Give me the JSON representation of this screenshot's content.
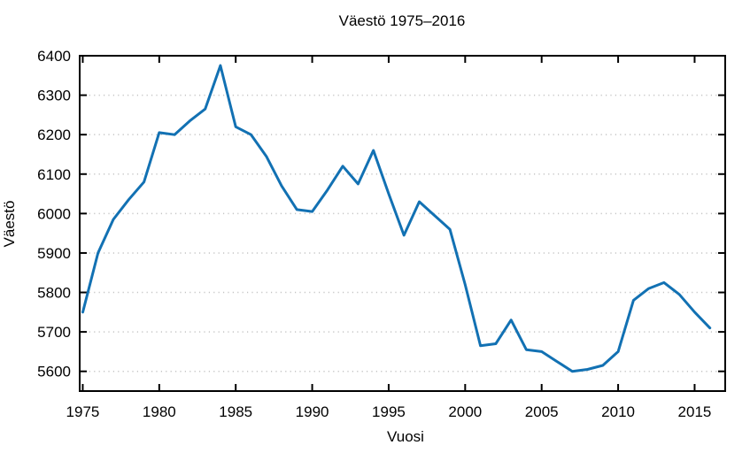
{
  "title": "Väestö 1975–2016",
  "chart_data": {
    "type": "line",
    "title": "Väestö 1975–2016",
    "xlabel": "Vuosi",
    "ylabel": "Väestö",
    "x": [
      1975,
      1976,
      1977,
      1978,
      1979,
      1980,
      1981,
      1982,
      1983,
      1984,
      1985,
      1986,
      1987,
      1988,
      1989,
      1990,
      1991,
      1992,
      1993,
      1994,
      1995,
      1996,
      1997,
      1998,
      1999,
      2000,
      2001,
      2002,
      2003,
      2004,
      2005,
      2006,
      2007,
      2008,
      2009,
      2010,
      2011,
      2012,
      2013,
      2014,
      2015,
      2016
    ],
    "values": [
      5750,
      5900,
      5985,
      6035,
      6080,
      6205,
      6200,
      6235,
      6265,
      6375,
      6220,
      6200,
      6145,
      6070,
      6010,
      6005,
      6060,
      6120,
      6075,
      6160,
      6050,
      5945,
      6030,
      5995,
      5960,
      5820,
      5665,
      5670,
      5730,
      5655,
      5650,
      5625,
      5600,
      5605,
      5615,
      5650,
      5780,
      5810,
      5825,
      5795,
      5750,
      5710
    ],
    "x_ticks": [
      1975,
      1980,
      1985,
      1990,
      1995,
      2000,
      2005,
      2010,
      2015
    ],
    "y_ticks": [
      5600,
      5700,
      5800,
      5900,
      6000,
      6100,
      6200,
      6300,
      6400
    ],
    "xlim": [
      1974.8,
      2017.0
    ],
    "ylim": [
      5550,
      6400
    ],
    "grid": "horizontal-dotted",
    "legend": "none",
    "line_color": "#1271b3",
    "axis_color": "#000000",
    "grid_color": "#c4c4c4"
  }
}
